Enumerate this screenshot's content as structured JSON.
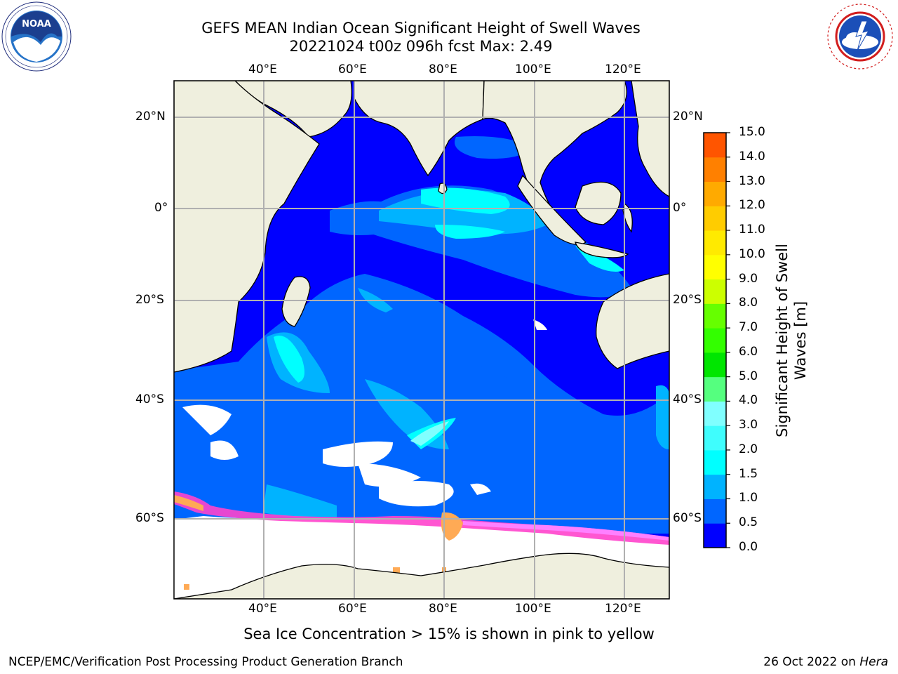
{
  "title": {
    "line1": "GEFS MEAN Indian Ocean Significant Height of Swell Waves",
    "line2": "20221024 t00z 096h fcst   Max: 2.49"
  },
  "map": {
    "lon_ticks_top": [
      "40°E",
      "60°E",
      "80°E",
      "100°E",
      "120°E"
    ],
    "lon_ticks_bottom": [
      "40°E",
      "60°E",
      "80°E",
      "100°E",
      "120°E"
    ],
    "lat_ticks_left": [
      "20°N",
      "0°",
      "20°S",
      "40°S",
      "60°S"
    ],
    "lat_ticks_right": [
      "20°N",
      "0°",
      "20°S",
      "40°S",
      "60°S"
    ],
    "colors": {
      "land": "#efefde",
      "sea_ice": "#ffffff",
      "grid": "#b0b0b0"
    }
  },
  "colorbar": {
    "label": "Significant Height of Swell Waves [m]",
    "ticks": [
      "0.0",
      "0.5",
      "1.0",
      "1.5",
      "2.0",
      "3.0",
      "4.0",
      "5.0",
      "6.0",
      "7.0",
      "8.0",
      "9.0",
      "10.0",
      "11.0",
      "12.0",
      "13.0",
      "14.0",
      "15.0"
    ],
    "colors": [
      "#0000ff",
      "#0066ff",
      "#00b3ff",
      "#00ffff",
      "#3ffdfd",
      "#80ffff",
      "#55ff7f",
      "#00e600",
      "#33ff00",
      "#66ff00",
      "#ccff00",
      "#ffff00",
      "#ffea00",
      "#ffcc00",
      "#ffaa00",
      "#ff8000",
      "#ff5500",
      "#ff1a00"
    ]
  },
  "note": "Sea Ice Concentration > 15% is shown in pink to yellow",
  "footer": {
    "left": "NCEP/EMC/Verification Post Processing Product Generation Branch",
    "right_prefix": "26 Oct 2022 on ",
    "right_italic": "Hera"
  },
  "logos": {
    "left": "noaa-logo-icon",
    "right": "nws-logo-icon"
  }
}
